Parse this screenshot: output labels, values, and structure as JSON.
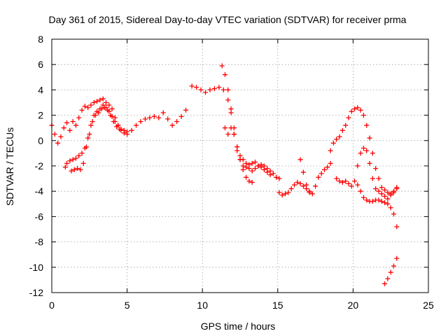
{
  "chart_data": {
    "type": "scatter",
    "title": "Day 361 of 2015, Sidereal Day-to-day VTEC variation (SDTVAR) for receiver prma",
    "xlabel": "GPS time / hours",
    "ylabel": "SDTVAR / TECUs",
    "xlim": [
      0,
      25
    ],
    "ylim": [
      -12,
      8
    ],
    "xticks": [
      0,
      5,
      10,
      15,
      20,
      25
    ],
    "yticks": [
      -12,
      -10,
      -8,
      -6,
      -4,
      -2,
      0,
      2,
      4,
      6,
      8
    ],
    "xtick_labels": [
      "0",
      "5",
      "10",
      "15",
      "20",
      "25"
    ],
    "ytick_labels": [
      "-12",
      "-10",
      "-8",
      "-6",
      "-4",
      "-2",
      "0",
      "2",
      "4",
      "6",
      "8"
    ],
    "grid": true,
    "marker": "plus",
    "color": "#ff0000",
    "series": [
      {
        "x": [
          0.0,
          0.2,
          0.4,
          0.6,
          0.8,
          1.0,
          1.2,
          1.4,
          1.6,
          1.8,
          2.0,
          2.2,
          2.4,
          2.6,
          2.8,
          3.0,
          3.2,
          3.4,
          3.6,
          3.8,
          4.0,
          4.2,
          4.4,
          4.6,
          4.8,
          5.0,
          5.3,
          5.6,
          5.9,
          6.2,
          6.5,
          6.8,
          7.1,
          7.4,
          7.7,
          8.0,
          8.3,
          8.6,
          8.9
        ],
        "y": [
          1.2,
          0.5,
          -0.2,
          0.3,
          1.0,
          1.4,
          0.8,
          1.5,
          1.2,
          1.8,
          2.4,
          2.7,
          2.6,
          2.8,
          3.0,
          3.1,
          3.2,
          3.3,
          3.0,
          2.8,
          2.5,
          1.8,
          1.2,
          0.8,
          0.6,
          0.5,
          0.8,
          1.2,
          1.5,
          1.7,
          1.8,
          1.9,
          1.8,
          2.2,
          1.7,
          1.2,
          1.5,
          1.9,
          2.4
        ]
      },
      {
        "x": [
          0.9,
          1.0,
          1.2,
          1.4,
          1.6,
          1.8,
          2.0,
          2.2,
          2.4,
          2.6,
          2.8,
          3.0,
          3.2,
          3.4,
          3.6,
          3.8,
          4.0,
          4.2,
          4.4,
          4.6,
          4.8,
          5.0
        ],
        "y": [
          -2.1,
          -1.8,
          -1.6,
          -1.5,
          -1.4,
          -1.2,
          -1.0,
          -0.6,
          0.2,
          1.2,
          2.0,
          2.3,
          2.5,
          2.8,
          2.6,
          2.3,
          1.9,
          1.5,
          1.2,
          0.9,
          0.8,
          0.7
        ]
      },
      {
        "x": [
          1.3,
          1.5,
          1.7,
          1.9,
          2.1,
          2.3,
          2.5,
          2.7,
          2.9,
          3.1,
          3.3,
          3.5,
          3.7,
          3.9,
          4.1,
          4.3,
          4.5
        ],
        "y": [
          -2.4,
          -2.3,
          -2.2,
          -2.3,
          -1.8,
          -0.5,
          0.5,
          1.5,
          2.0,
          2.2,
          2.5,
          2.6,
          2.4,
          2.0,
          1.5,
          1.1,
          0.9
        ]
      },
      {
        "x": [
          9.3,
          9.6,
          9.9,
          10.2,
          10.5,
          10.8,
          11.1,
          11.4,
          11.7,
          11.9,
          12.1,
          12.3,
          12.5,
          12.7,
          12.9,
          13.1,
          13.3,
          13.5,
          13.7,
          13.9,
          14.1,
          14.3,
          14.5,
          14.7,
          14.9,
          15.1
        ],
        "y": [
          4.3,
          4.2,
          4.0,
          3.8,
          4.0,
          4.1,
          4.2,
          4.0,
          3.2,
          2.2,
          0.5,
          -0.8,
          -1.5,
          -2.0,
          -2.1,
          -1.9,
          -1.8,
          -1.7,
          -2.0,
          -1.9,
          -2.0,
          -2.2,
          -2.4,
          -2.6,
          -2.9,
          -3.0
        ]
      },
      {
        "x": [
          11.3,
          11.5,
          11.7,
          11.9,
          12.1,
          12.3,
          12.5,
          12.7,
          12.9,
          13.1,
          13.3
        ],
        "y": [
          5.9,
          5.2,
          4.0,
          2.5,
          1.0,
          -0.5,
          -1.5,
          -2.3,
          -2.9,
          -3.2,
          -3.3
        ]
      },
      {
        "x": [
          11.5,
          11.7,
          11.9,
          12.1,
          12.3,
          12.5,
          12.7,
          12.9,
          13.1,
          13.3,
          13.5,
          13.7,
          13.9,
          14.1,
          14.3,
          14.5
        ],
        "y": [
          1.0,
          0.5,
          1.0,
          0.5,
          -0.5,
          -1.2,
          -1.5,
          -1.8,
          -2.2,
          -2.4,
          -2.2,
          -2.0,
          -2.1,
          -2.3,
          -2.5,
          -2.7
        ]
      },
      {
        "x": [
          15.1,
          15.3,
          15.5,
          15.7,
          15.9,
          16.1,
          16.3,
          16.5,
          16.7,
          16.9,
          17.1
        ],
        "y": [
          -4.1,
          -4.3,
          -4.2,
          -4.1,
          -3.8,
          -3.5,
          -3.3,
          -3.4,
          -3.6,
          -3.8,
          -4.0
        ]
      },
      {
        "x": [
          16.5,
          16.7,
          16.9,
          17.1,
          17.3,
          17.5,
          17.7,
          17.9,
          18.1,
          18.3,
          18.5
        ],
        "y": [
          -1.5,
          -2.5,
          -3.5,
          -4.1,
          -4.2,
          -3.6,
          -2.9,
          -2.6,
          -2.3,
          -2.1,
          -1.8
        ]
      },
      {
        "x": [
          18.5,
          18.7,
          18.9,
          19.1,
          19.3,
          19.5,
          19.7,
          19.9,
          20.1,
          20.3,
          20.5,
          20.7,
          20.9,
          21.1,
          21.3,
          21.5,
          21.7,
          21.9,
          22.1,
          22.3,
          22.5,
          22.7,
          22.9
        ],
        "y": [
          -0.8,
          -0.2,
          0.1,
          0.3,
          0.8,
          1.2,
          1.8,
          2.3,
          2.5,
          2.6,
          2.4,
          2.0,
          1.2,
          0.2,
          -1.0,
          -2.2,
          -3.0,
          -3.7,
          -3.9,
          -4.1,
          -4.2,
          -4.1,
          -3.7
        ]
      },
      {
        "x": [
          18.9,
          19.1,
          19.3,
          19.5,
          19.7,
          19.9,
          20.1,
          20.3,
          20.5,
          20.7,
          20.9,
          21.1,
          21.3,
          21.5,
          21.7,
          21.9,
          22.1,
          22.3,
          22.5,
          22.7,
          22.9
        ],
        "y": [
          -3.0,
          -3.2,
          -3.3,
          -3.2,
          -3.4,
          -3.6,
          -3.2,
          -2.0,
          -1.0,
          -0.6,
          -0.8,
          -1.8,
          -3.0,
          -3.8,
          -4.0,
          -4.2,
          -4.4,
          -4.6,
          -4.3,
          -4.0,
          -3.8
        ]
      },
      {
        "x": [
          20.3,
          20.5,
          20.7,
          20.9,
          21.1,
          21.3,
          21.5,
          21.7,
          21.9,
          22.1,
          22.3,
          22.5,
          22.7,
          22.9
        ],
        "y": [
          -3.5,
          -4.0,
          -4.5,
          -4.7,
          -4.8,
          -4.8,
          -4.7,
          -4.7,
          -4.8,
          -4.9,
          -5.0,
          -5.3,
          -5.8,
          -6.8
        ]
      },
      {
        "x": [
          22.1,
          22.3,
          22.5,
          22.7,
          22.9
        ],
        "y": [
          -11.3,
          -10.9,
          -10.4,
          -9.9,
          -9.3
        ]
      }
    ]
  }
}
